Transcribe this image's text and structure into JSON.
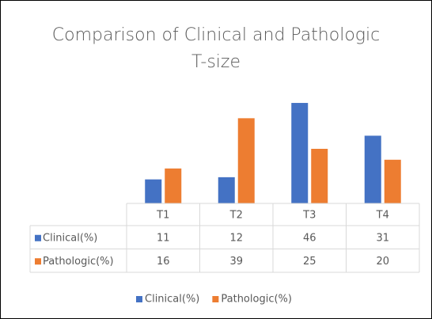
{
  "chart_data": {
    "type": "bar",
    "title": "Comparison of Clinical and Pathologic T-size",
    "categories": [
      "T1",
      "T2",
      "T3",
      "T4"
    ],
    "series": [
      {
        "name": "Clinical(%)",
        "color": "#4472c4",
        "values": [
          11,
          12,
          46,
          31
        ]
      },
      {
        "name": "Pathologic(%)",
        "color": "#ed7d31",
        "values": [
          16,
          39,
          25,
          20
        ]
      }
    ],
    "ylim": [
      0,
      50
    ],
    "grid": false,
    "data_table": true,
    "legend": "bottom"
  }
}
